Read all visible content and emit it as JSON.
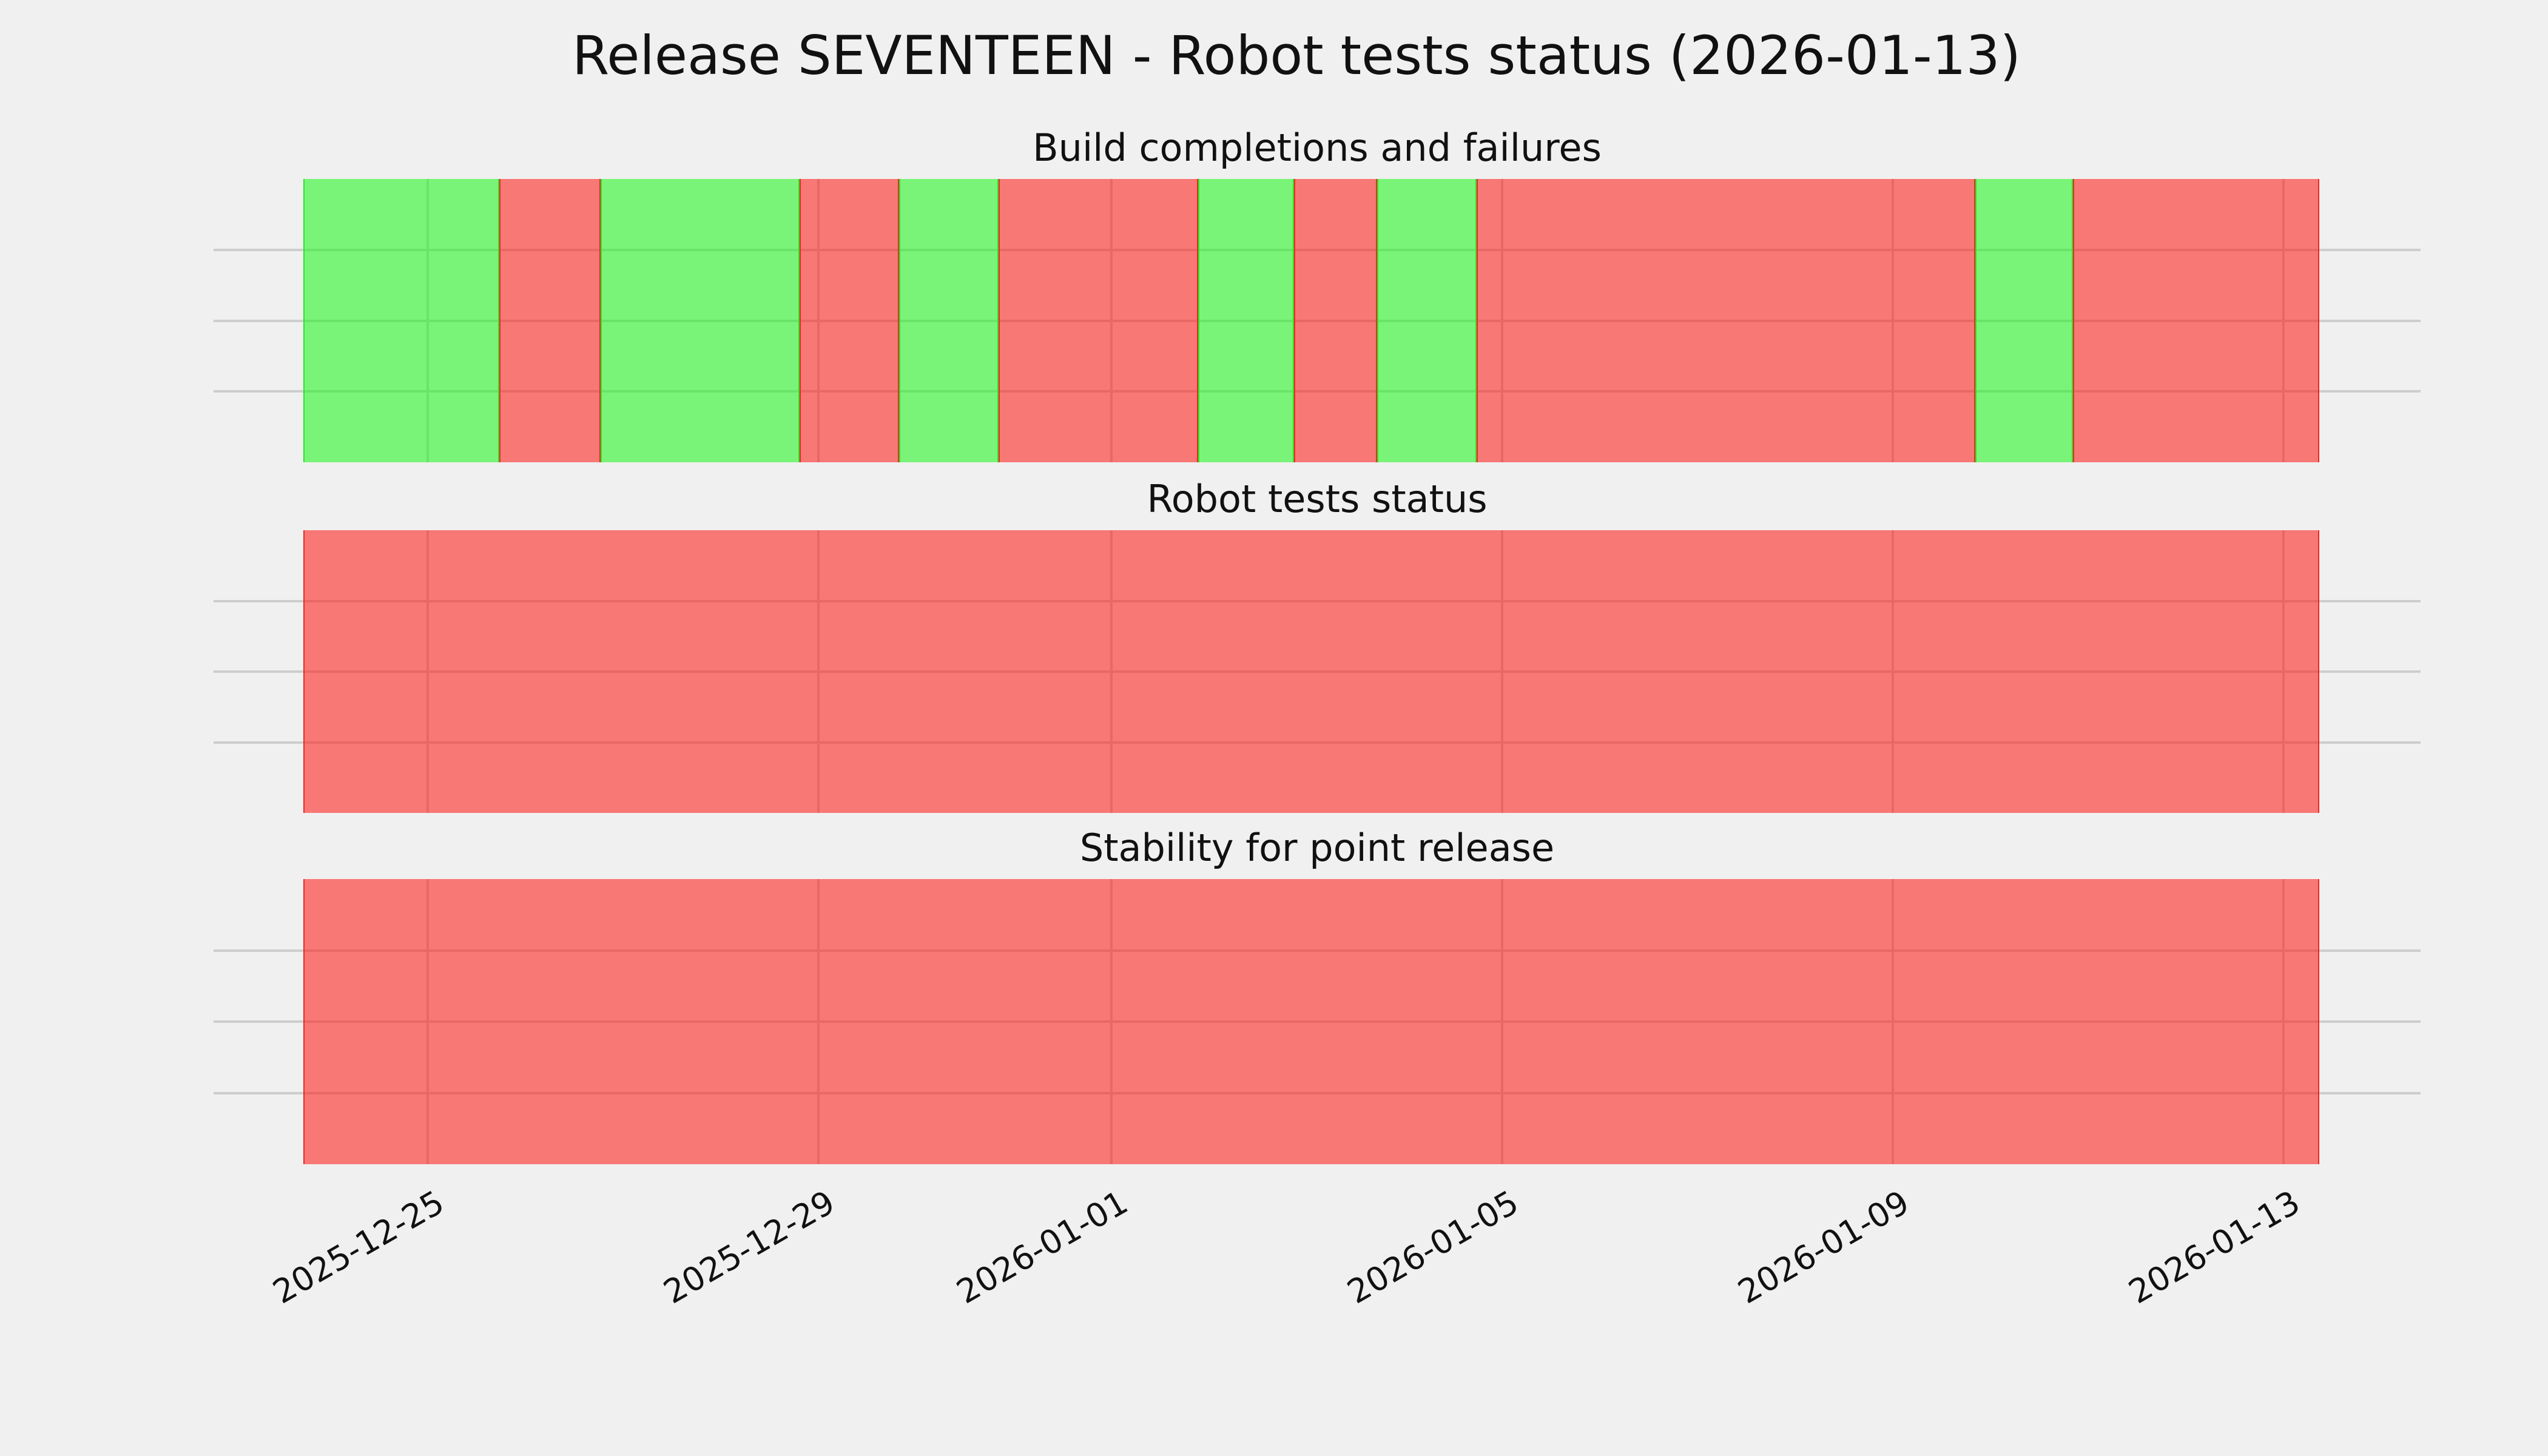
{
  "title": "Release SEVENTEEN - Robot tests status (2026-01-13)",
  "chart_data": {
    "type": "bar",
    "subtype": "status-timeline-subplots",
    "title": "Release SEVENTEEN - Robot tests status (2026-01-13)",
    "x_axis": {
      "tick_labels": [
        "2025-12-25",
        "2025-12-29",
        "2026-01-01",
        "2026-01-05",
        "2026-01-09",
        "2026-01-13"
      ],
      "tick_positions_pct": [
        9.7,
        27.41,
        40.68,
        58.38,
        76.08,
        93.79
      ],
      "timeline_start_pct_of_axes": 4.068,
      "timeline_width_pct_of_axes": 91.34,
      "approx_timeline_range": "2025-12-23 ~17:00 to 2026-01-13 ~09:00",
      "grid": "on",
      "y_tick_labels": "none"
    },
    "panels": [
      {
        "subtitle": "Build completions and failures",
        "segments": [
          {
            "status": "pass",
            "start_pct": 0.0,
            "end_pct": 9.72,
            "approx_start": "2025-12-23 ~17:00",
            "approx_end": "2025-12-25 ~17:00"
          },
          {
            "status": "fail",
            "start_pct": 9.72,
            "end_pct": 14.75,
            "approx_start": "2025-12-25 ~17:00",
            "approx_end": "2025-12-26 ~18:00"
          },
          {
            "status": "pass",
            "start_pct": 14.75,
            "end_pct": 24.62,
            "approx_start": "2025-12-26 ~18:00",
            "approx_end": "2025-12-28 ~19:00"
          },
          {
            "status": "fail",
            "start_pct": 24.62,
            "end_pct": 29.55,
            "approx_start": "2025-12-28 ~19:00",
            "approx_end": "2025-12-29 ~20:00"
          },
          {
            "status": "pass",
            "start_pct": 29.55,
            "end_pct": 34.49,
            "approx_start": "2025-12-29 ~20:00",
            "approx_end": "2025-12-30 ~20:00"
          },
          {
            "status": "fail",
            "start_pct": 34.49,
            "end_pct": 44.39,
            "approx_start": "2025-12-30 ~20:00",
            "approx_end": "2026-01-01 ~21:00"
          },
          {
            "status": "pass",
            "start_pct": 44.39,
            "end_pct": 49.14,
            "approx_start": "2026-01-01 ~21:00",
            "approx_end": "2026-01-02 ~21:00"
          },
          {
            "status": "fail",
            "start_pct": 49.14,
            "end_pct": 53.26,
            "approx_start": "2026-01-02 ~21:00",
            "approx_end": "2026-01-03 ~17:00"
          },
          {
            "status": "pass",
            "start_pct": 53.26,
            "end_pct": 58.2,
            "approx_start": "2026-01-03 ~17:00",
            "approx_end": "2026-01-04 ~18:00"
          },
          {
            "status": "fail",
            "start_pct": 58.2,
            "end_pct": 82.94,
            "approx_start": "2026-01-04 ~18:00",
            "approx_end": "2026-01-09 ~20:00"
          },
          {
            "status": "pass",
            "start_pct": 82.94,
            "end_pct": 87.78,
            "approx_start": "2026-01-09 ~20:00",
            "approx_end": "2026-01-10 ~20:00"
          },
          {
            "status": "fail",
            "start_pct": 87.78,
            "end_pct": 100.0,
            "approx_start": "2026-01-10 ~20:00",
            "approx_end": "2026-01-13 ~09:00"
          }
        ]
      },
      {
        "subtitle": "Robot tests status",
        "segments": [
          {
            "status": "fail",
            "start_pct": 0.0,
            "end_pct": 100.0,
            "approx_start": "2025-12-23 ~17:00",
            "approx_end": "2026-01-13 ~09:00"
          }
        ]
      },
      {
        "subtitle": "Stability for point release",
        "segments": [
          {
            "status": "fail",
            "start_pct": 0.0,
            "end_pct": 100.0,
            "approx_start": "2025-12-23 ~17:00",
            "approx_end": "2026-01-13 ~09:00"
          }
        ]
      }
    ]
  },
  "colors": {
    "background": "#f0f0f0",
    "grid": "#cdcdcd",
    "pass_fill": "rgba(25,247,22,0.55)",
    "fail_fill": "rgba(255,22,18,0.55)",
    "pass_edge": "#2ae426",
    "fail_edge": "#e92b22",
    "text": "#111111"
  }
}
